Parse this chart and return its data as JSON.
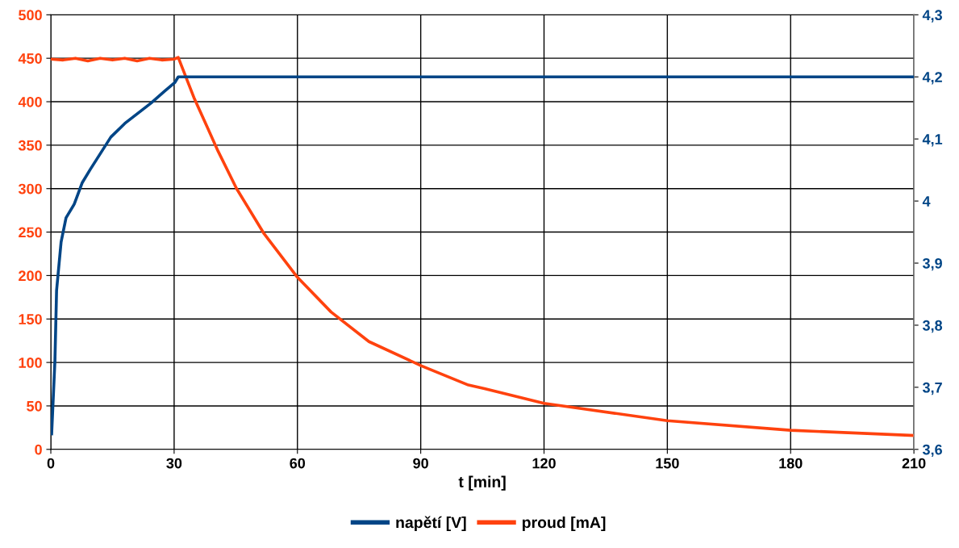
{
  "chart_data": {
    "type": "line",
    "xlabel": "t [min]",
    "xlim": [
      0,
      210
    ],
    "xticks": [
      0,
      30,
      60,
      90,
      120,
      150,
      180,
      210
    ],
    "ylim": [
      0,
      500
    ],
    "yticks": [
      0,
      50,
      100,
      150,
      200,
      250,
      300,
      350,
      400,
      450,
      500
    ],
    "y2lim": [
      3.6,
      4.3
    ],
    "y2ticks": [
      {
        "value": 3.6,
        "label": "3,6"
      },
      {
        "value": 3.7,
        "label": "3,7"
      },
      {
        "value": 3.8,
        "label": "3,8"
      },
      {
        "value": 3.9,
        "label": "3,9"
      },
      {
        "value": 4,
        "label": "4"
      },
      {
        "value": 4.1,
        "label": "4,1"
      },
      {
        "value": 4.2,
        "label": "4,2"
      },
      {
        "value": 4.3,
        "label": "4,3"
      }
    ],
    "grid": true,
    "legend": "bottom",
    "marker": "none",
    "line_style": "solid",
    "series": [
      {
        "name": "napětí [V]",
        "color": "#004586",
        "axis": "y2",
        "x": [
          0.2,
          1.0,
          1.4,
          2.5,
          3.7,
          5.7,
          7.6,
          9.6,
          12.1,
          14.6,
          18.0,
          21.3,
          24.4,
          27.7,
          30.2,
          31,
          60,
          90,
          120,
          150,
          180,
          210
        ],
        "values": [
          3.625,
          3.743,
          3.856,
          3.934,
          3.973,
          3.995,
          4.029,
          4.051,
          4.077,
          4.103,
          4.125,
          4.142,
          4.158,
          4.177,
          4.191,
          4.2,
          4.2,
          4.2,
          4.2,
          4.2,
          4.2,
          4.2
        ]
      },
      {
        "name": "proud [mA]",
        "color": "#ff420e",
        "x": [
          0,
          3,
          6,
          9,
          12,
          15,
          18,
          21,
          24,
          27,
          30,
          31,
          34.8,
          40.7,
          45.2,
          51.9,
          60,
          68.2,
          77.4,
          90.2,
          101.6,
          105.5,
          120,
          150,
          180,
          210
        ],
        "values": [
          449,
          448,
          450,
          447,
          450,
          448,
          450,
          447,
          450,
          448,
          449,
          451,
          405,
          343,
          300,
          248,
          198,
          158,
          124,
          96,
          74,
          70,
          53,
          33,
          22,
          16
        ]
      }
    ]
  }
}
